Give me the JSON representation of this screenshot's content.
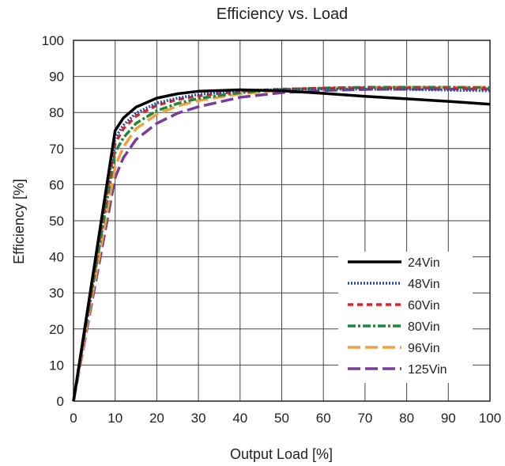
{
  "chart_data": {
    "type": "line",
    "title": "Efficiency vs. Load",
    "xlabel": "Output Load [%]",
    "ylabel": "Efficiency [%]",
    "xlim": [
      0,
      100
    ],
    "ylim": [
      0,
      100
    ],
    "xticks": [
      0,
      10,
      20,
      30,
      40,
      50,
      60,
      70,
      80,
      90,
      100
    ],
    "yticks": [
      0,
      10,
      20,
      30,
      40,
      50,
      60,
      70,
      80,
      90,
      100
    ],
    "grid": true,
    "legend_position": "lower-right",
    "series": [
      {
        "name": "24Vin",
        "color": "#000000",
        "dash": "solid",
        "x": [
          0,
          10,
          12,
          15,
          20,
          25,
          30,
          40,
          50,
          60,
          70,
          80,
          90,
          100
        ],
        "y": [
          0,
          75,
          78.5,
          81.5,
          84,
          85.2,
          85.9,
          86.3,
          86,
          85.3,
          84.5,
          83.8,
          83.1,
          82.3
        ]
      },
      {
        "name": "48Vin",
        "color": "#1f4fa3",
        "dash": "dotted",
        "x": [
          0,
          10,
          12,
          15,
          20,
          25,
          30,
          40,
          50,
          60,
          70,
          80,
          90,
          100
        ],
        "y": [
          0,
          73,
          76.5,
          79.8,
          82.6,
          84,
          85,
          86,
          86.4,
          86.5,
          86.5,
          86.4,
          86.2,
          86
        ]
      },
      {
        "name": "60Vin",
        "color": "#d9262c",
        "dash": "dashed",
        "x": [
          0,
          10,
          12,
          15,
          20,
          25,
          30,
          40,
          50,
          60,
          70,
          80,
          90,
          100
        ],
        "y": [
          0,
          71.5,
          75.5,
          79,
          82,
          83.6,
          84.6,
          85.9,
          86.5,
          86.7,
          86.8,
          86.8,
          86.7,
          86.6
        ]
      },
      {
        "name": "80Vin",
        "color": "#1a8a3a",
        "dash": "dashdot",
        "x": [
          0,
          10,
          12,
          15,
          20,
          25,
          30,
          40,
          50,
          60,
          70,
          80,
          90,
          100
        ],
        "y": [
          0,
          69,
          73,
          77,
          80.5,
          82.5,
          83.9,
          85.5,
          86.4,
          86.8,
          87,
          87,
          87,
          86.9
        ]
      },
      {
        "name": "96Vin",
        "color": "#f5a040",
        "dash": "longdash",
        "x": [
          0,
          10,
          12,
          15,
          20,
          25,
          30,
          40,
          50,
          60,
          70,
          80,
          90,
          100
        ],
        "y": [
          0,
          65,
          70.5,
          75.5,
          79.5,
          81.8,
          83.3,
          85.2,
          86.2,
          86.7,
          86.9,
          87,
          87,
          87
        ]
      },
      {
        "name": "125Vin",
        "color": "#7a3b9a",
        "dash": "longdash",
        "x": [
          0,
          10,
          12,
          15,
          20,
          25,
          30,
          40,
          50,
          60,
          70,
          80,
          90,
          100
        ],
        "y": [
          0,
          62,
          67.5,
          72.5,
          77,
          79.8,
          81.6,
          84.2,
          85.5,
          86.1,
          86.4,
          86.5,
          86.5,
          86.5
        ]
      }
    ]
  }
}
